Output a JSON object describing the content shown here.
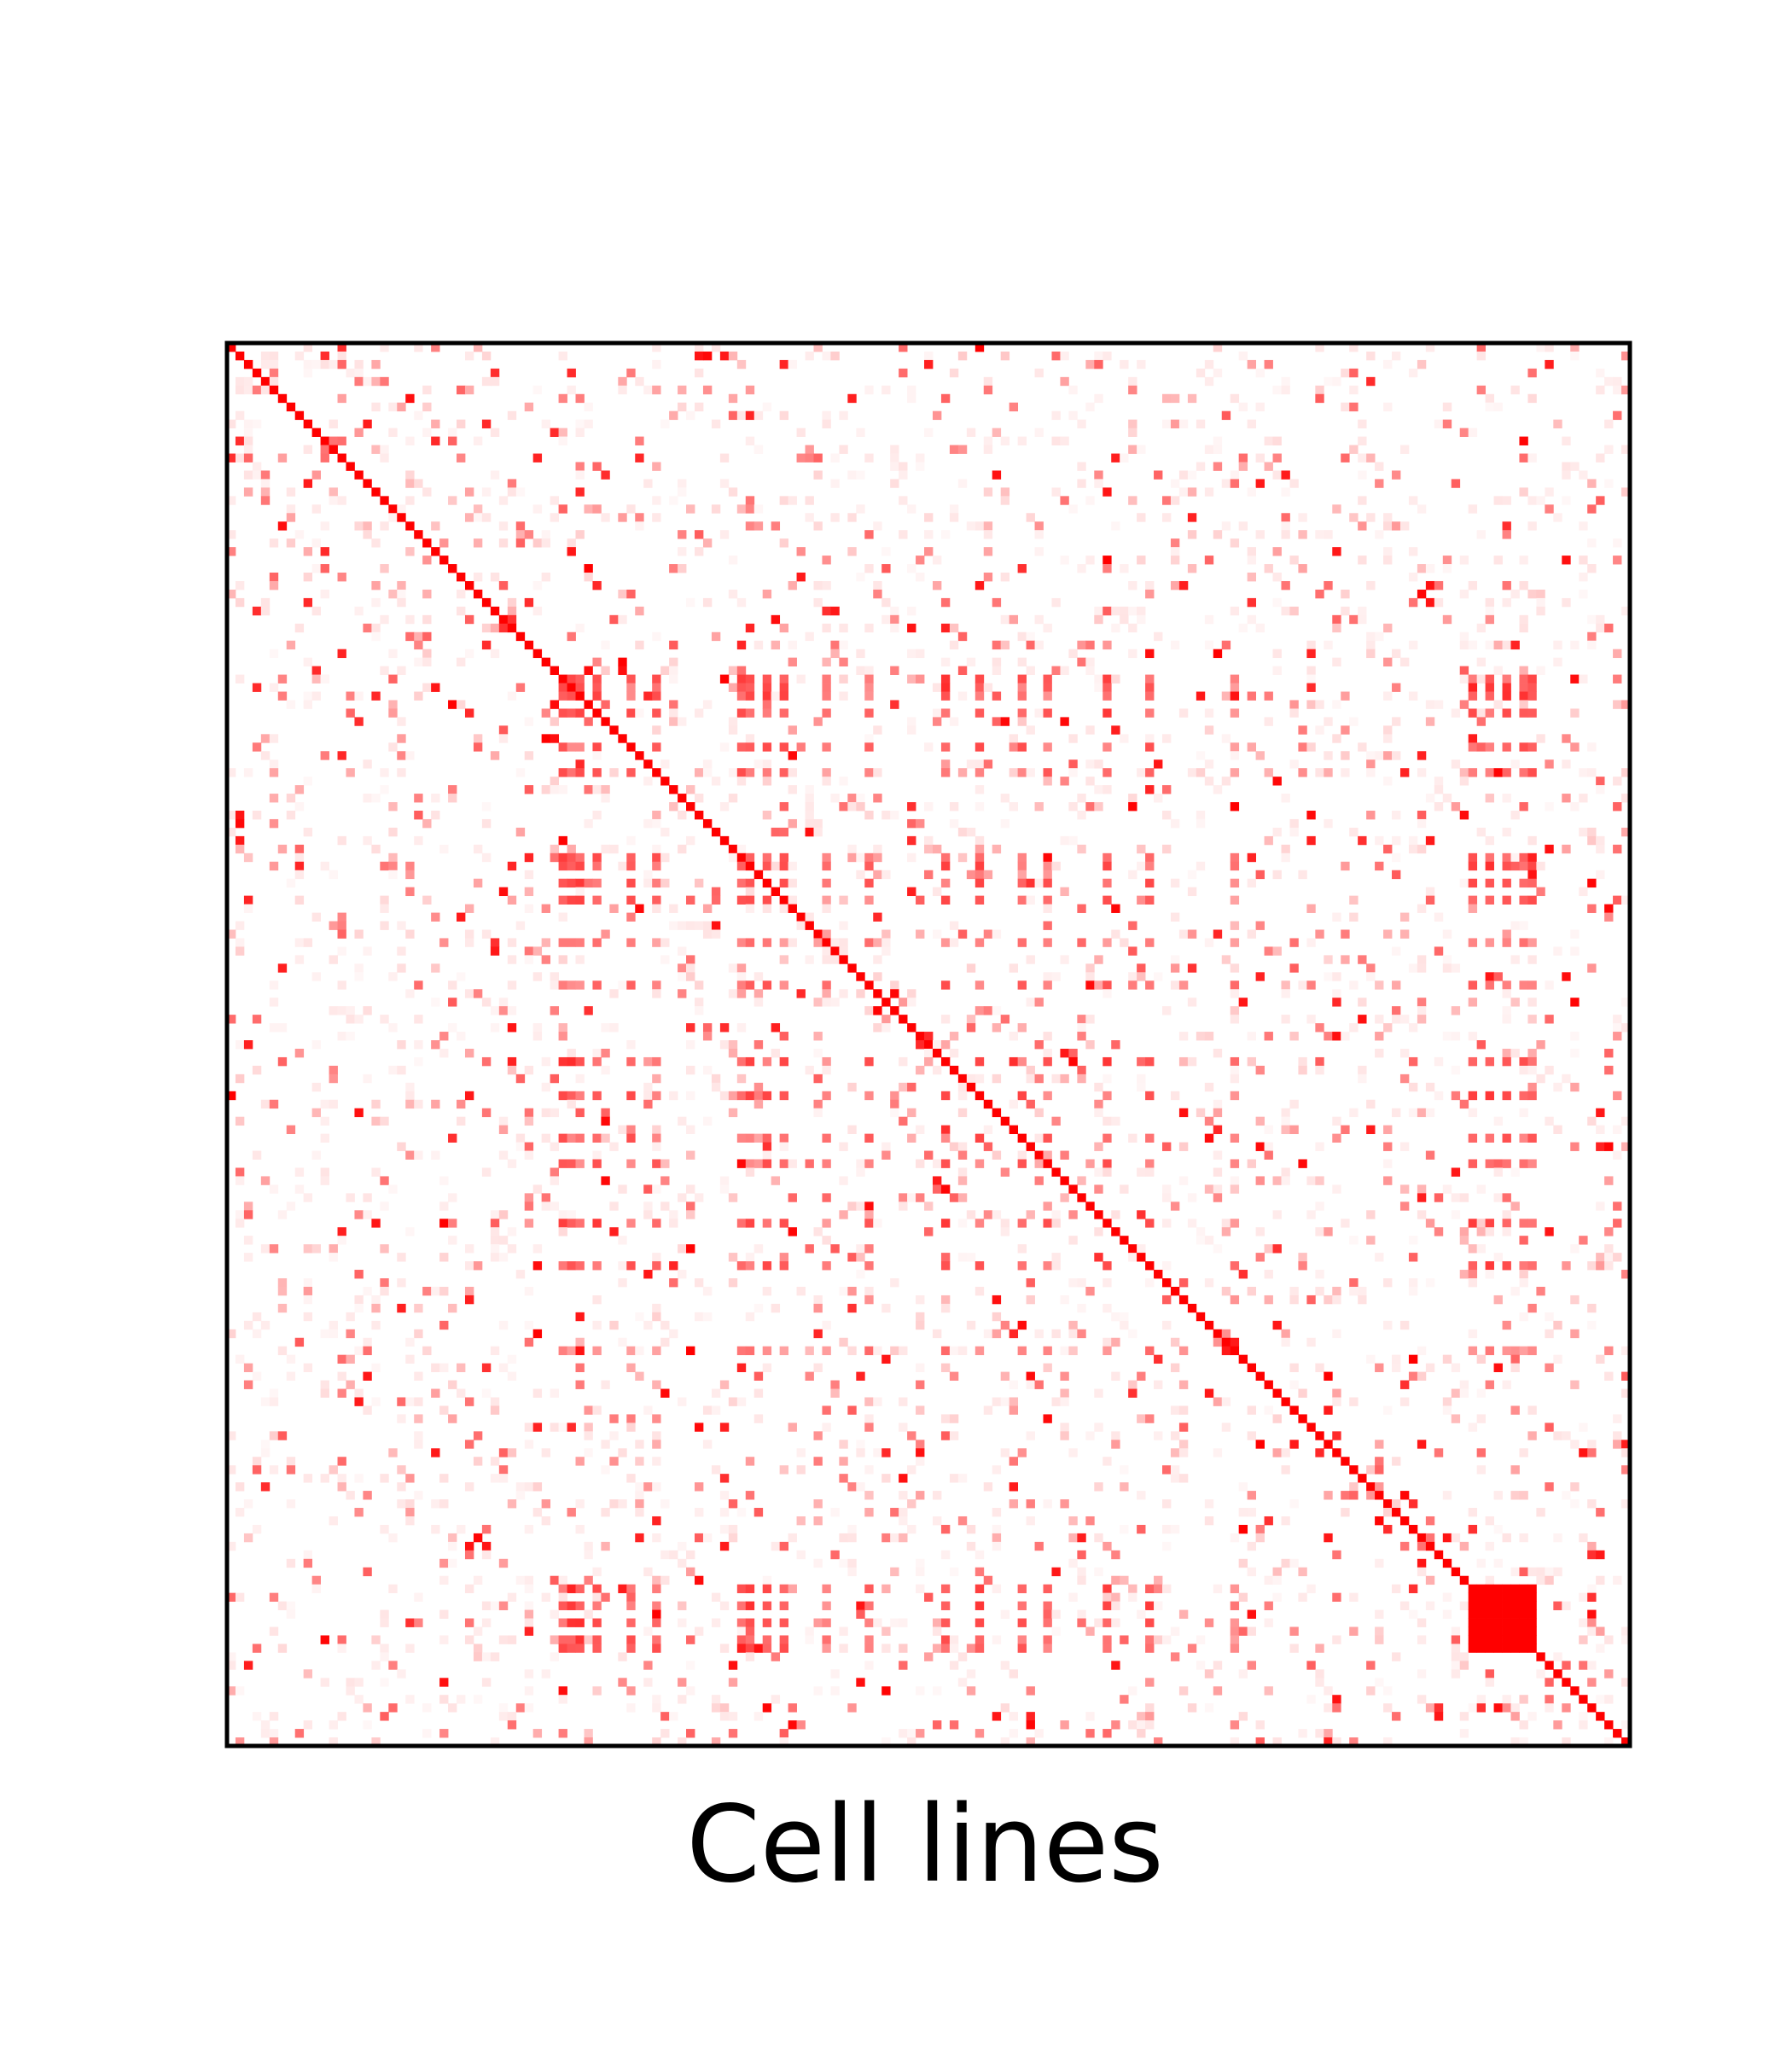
{
  "chart_data": {
    "type": "heatmap",
    "xlabel": "Cell lines",
    "ylabel": "",
    "title": "",
    "grid": false,
    "ticks": false,
    "n": 165,
    "value_range": [
      0,
      1
    ],
    "colormap": {
      "low": "#ffffff",
      "high": "#ff0000"
    },
    "diagonal_value": 1,
    "hub_indices": [
      39,
      40,
      41,
      43,
      47,
      50,
      60,
      61,
      63,
      65,
      70,
      75,
      84,
      88,
      93,
      96,
      103,
      108,
      118,
      146,
      148,
      150,
      152,
      153
    ],
    "hub_strength": [
      0.85,
      0.95,
      0.9,
      0.8,
      0.75,
      0.7,
      0.9,
      0.85,
      0.8,
      0.75,
      0.6,
      0.7,
      0.85,
      0.8,
      0.75,
      0.7,
      0.8,
      0.8,
      0.6,
      0.95,
      0.9,
      1.0,
      1.0,
      0.95
    ],
    "hub_block": {
      "indices": [
        146,
        147,
        148,
        149,
        150,
        151,
        152,
        153
      ],
      "value": 1.0
    },
    "sparse_density": 0.06,
    "random_seed": 7
  }
}
